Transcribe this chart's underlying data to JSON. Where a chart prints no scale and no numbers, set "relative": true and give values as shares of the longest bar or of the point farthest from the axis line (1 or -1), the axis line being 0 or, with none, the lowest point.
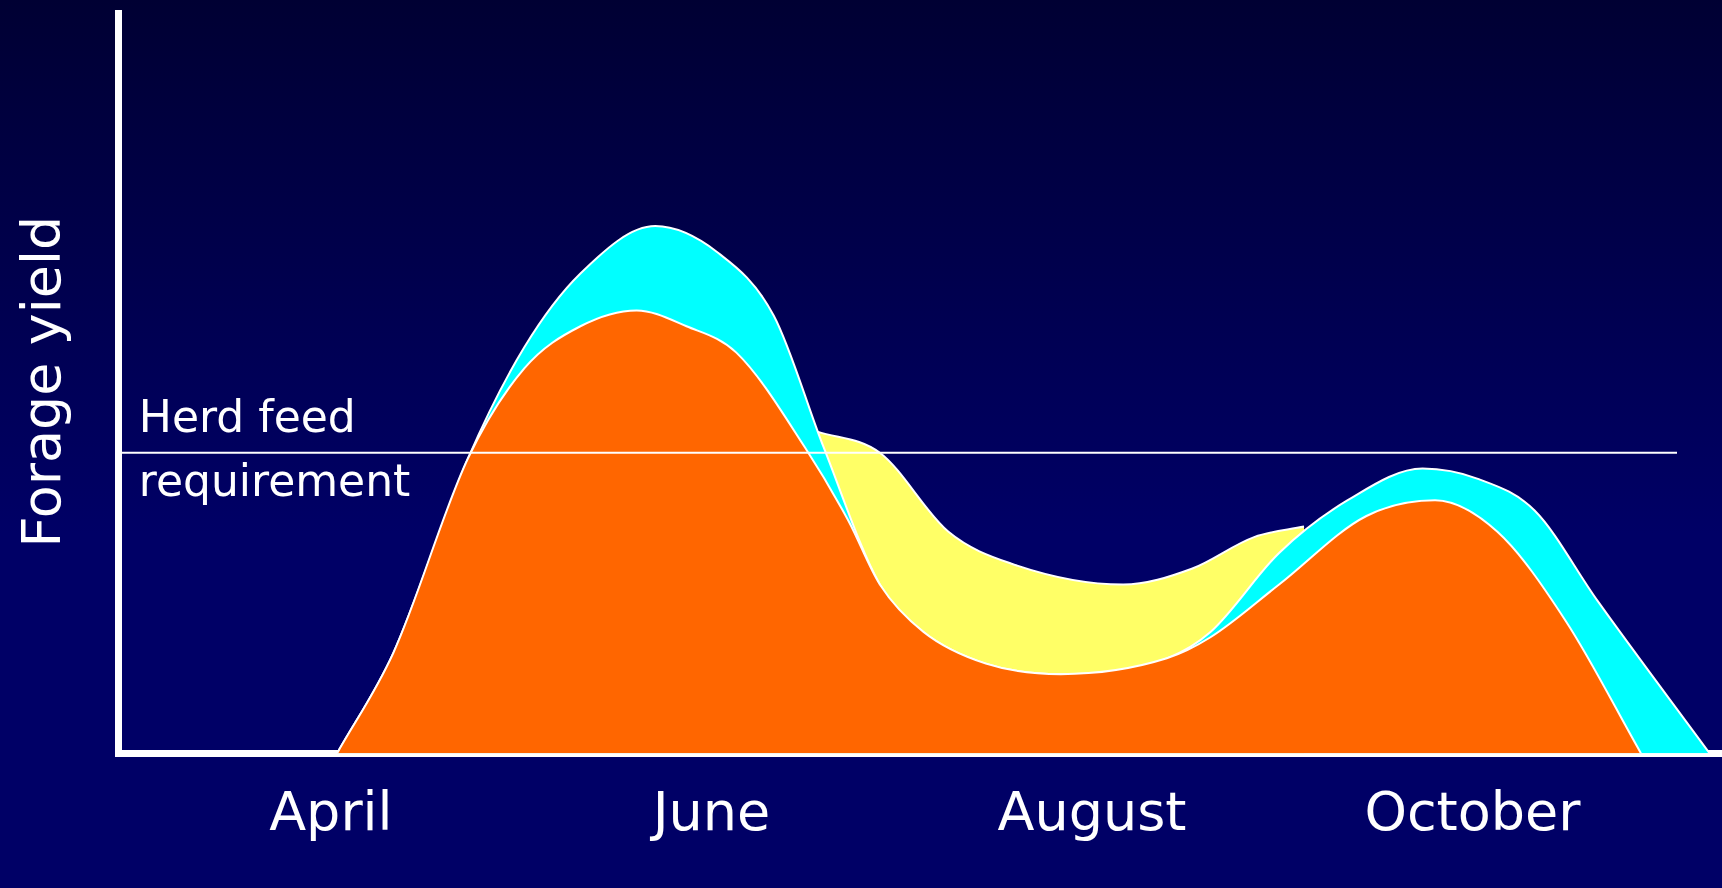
{
  "chart_data": {
    "type": "area",
    "relative": true,
    "ylabel": "Forage yield",
    "grid": false,
    "legend": false,
    "marker": "none",
    "xlim": [
      "--02-26",
      "--11-10"
    ],
    "xticks": [
      {
        "value": "--04-01",
        "label": "April"
      },
      {
        "value": "--06-01",
        "label": "June"
      },
      {
        "value": "--08-01",
        "label": "August"
      },
      {
        "value": "--10-01",
        "label": "October"
      }
    ],
    "series": [
      {
        "color": "#ffff66",
        "x": [
          "--06-18",
          "--06-28",
          "--07-09",
          "--07-19",
          "--08-06",
          "--08-17",
          "--08-27",
          "--09-04"
        ],
        "values": [
          0.61,
          0.57,
          0.42,
          0.36,
          0.32,
          0.35,
          0.41,
          0.43
        ]
      },
      {
        "color": "#00ffff",
        "x": [
          "--04-02",
          "--04-11",
          "--04-23",
          "--05-02",
          "--05-11",
          "--05-23",
          "--06-02",
          "--06-11",
          "--06-19",
          "--06-28",
          "--07-05",
          "--07-15",
          "--07-27",
          "--08-13",
          "--08-20",
          "--08-31",
          "--09-11",
          "--09-23",
          "--10-02",
          "--10-11",
          "--10-21",
          "--11-08"
        ],
        "values": [
          0,
          0.19,
          0.56,
          0.77,
          0.91,
          1,
          0.95,
          0.83,
          0.58,
          0.32,
          0.23,
          0.17,
          0.15,
          0.18,
          0.23,
          0.38,
          0.48,
          0.54,
          0.52,
          0.46,
          0.29,
          0
        ]
      },
      {
        "color": "#ff6600",
        "x": [
          "--04-02",
          "--04-11",
          "--04-23",
          "--05-02",
          "--05-11",
          "--05-20",
          "--05-28",
          "--06-05",
          "--06-16",
          "--06-23",
          "--06-28",
          "--07-05",
          "--07-15",
          "--07-27",
          "--08-13",
          "--08-20",
          "--08-31",
          "--09-14",
          "--09-25",
          "--10-05",
          "--10-16",
          "--10-28"
        ],
        "values": [
          0,
          0.19,
          0.56,
          0.73,
          0.81,
          0.84,
          0.81,
          0.76,
          0.58,
          0.44,
          0.32,
          0.23,
          0.17,
          0.15,
          0.18,
          0.22,
          0.32,
          0.45,
          0.48,
          0.42,
          0.25,
          0
        ]
      }
    ],
    "ref_lines": [
      {
        "axis": "y",
        "value": 0.57,
        "label": "Herd feed requirement",
        "color": "#ffffff"
      }
    ]
  }
}
